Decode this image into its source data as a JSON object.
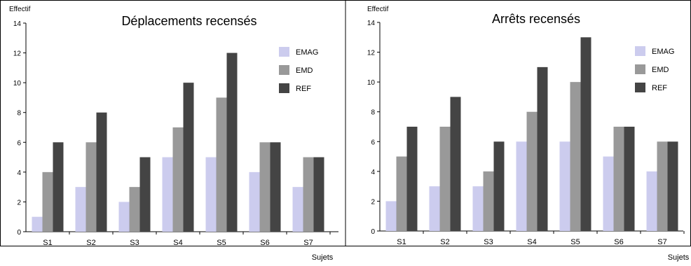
{
  "chart_data": [
    {
      "type": "bar",
      "title": "Déplacements recensés",
      "ylabel": "Effectif",
      "xlabel": "Sujets",
      "categories": [
        "S1",
        "S2",
        "S3",
        "S4",
        "S5",
        "S6",
        "S7"
      ],
      "ylim": [
        0,
        14
      ],
      "yticks": [
        0,
        2,
        4,
        6,
        8,
        10,
        12,
        14
      ],
      "grid": false,
      "legend": "top-right",
      "series": [
        {
          "name": "EMAG",
          "color": "#ccccee",
          "values": [
            1,
            3,
            2,
            5,
            5,
            4,
            3
          ]
        },
        {
          "name": "EMD",
          "color": "#999999",
          "values": [
            4,
            6,
            3,
            7,
            9,
            6,
            5
          ]
        },
        {
          "name": "REF",
          "color": "#444444",
          "values": [
            6,
            8,
            5,
            10,
            12,
            6,
            5
          ]
        }
      ]
    },
    {
      "type": "bar",
      "title": "Arrêts recensés",
      "ylabel": "Effectif",
      "xlabel": "Sujets",
      "categories": [
        "S1",
        "S2",
        "S3",
        "S4",
        "S5",
        "S6",
        "S7"
      ],
      "ylim": [
        0,
        14
      ],
      "yticks": [
        0,
        2,
        4,
        6,
        8,
        10,
        12,
        14
      ],
      "grid": false,
      "legend": "top-right",
      "series": [
        {
          "name": "EMAG",
          "color": "#ccccee",
          "values": [
            2,
            3,
            3,
            6,
            6,
            5,
            4
          ]
        },
        {
          "name": "EMD",
          "color": "#999999",
          "values": [
            5,
            7,
            4,
            8,
            10,
            7,
            6
          ]
        },
        {
          "name": "REF",
          "color": "#444444",
          "values": [
            7,
            9,
            6,
            11,
            13,
            7,
            6
          ]
        }
      ]
    }
  ]
}
